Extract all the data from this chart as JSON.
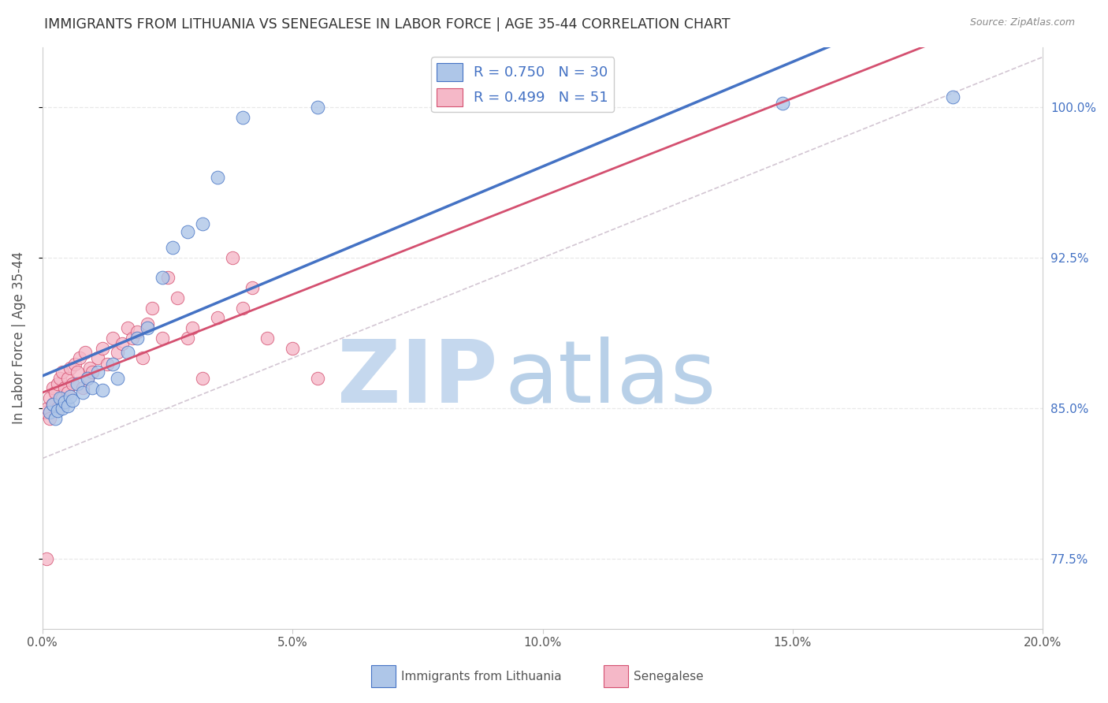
{
  "title": "IMMIGRANTS FROM LITHUANIA VS SENEGALESE IN LABOR FORCE | AGE 35-44 CORRELATION CHART",
  "source": "Source: ZipAtlas.com",
  "xlabel_vals": [
    0.0,
    5.0,
    10.0,
    15.0,
    20.0
  ],
  "ylabel_vals": [
    77.5,
    85.0,
    92.5,
    100.0
  ],
  "xmin": 0.0,
  "xmax": 20.0,
  "ymin": 74.0,
  "ymax": 103.0,
  "R1": 0.75,
  "N1": 30,
  "R2": 0.499,
  "N2": 51,
  "color_blue": "#aec6e8",
  "color_pink": "#f5b8c8",
  "line_blue": "#4472c4",
  "line_pink": "#d45070",
  "line_dashed_color": "#c8b8c8",
  "ylabel": "In Labor Force | Age 35-44",
  "watermark_ZIP": "ZIP",
  "watermark_atlas": "atlas",
  "watermark_color": "#dce8f5",
  "tick_color_right": "#4472c4",
  "grid_color": "#e8e8e8",
  "legend_R_color": "#4472c4",
  "legend_N_color": "#22aa22",
  "blue_x": [
    0.15,
    0.2,
    0.25,
    0.3,
    0.35,
    0.4,
    0.45,
    0.5,
    0.55,
    0.6,
    0.7,
    0.8,
    0.9,
    1.0,
    1.1,
    1.2,
    1.4,
    1.5,
    1.7,
    1.9,
    2.1,
    2.4,
    2.6,
    2.9,
    3.2,
    3.5,
    4.0,
    5.5,
    14.8,
    18.2
  ],
  "blue_y": [
    84.8,
    85.2,
    84.5,
    84.9,
    85.5,
    85.0,
    85.3,
    85.1,
    85.6,
    85.4,
    86.2,
    85.8,
    86.5,
    86.0,
    86.8,
    85.9,
    87.2,
    86.5,
    87.8,
    88.5,
    89.0,
    91.5,
    93.0,
    93.8,
    94.2,
    96.5,
    99.5,
    100.0,
    100.2,
    100.5
  ],
  "pink_x": [
    0.05,
    0.1,
    0.15,
    0.15,
    0.2,
    0.2,
    0.25,
    0.3,
    0.3,
    0.35,
    0.4,
    0.4,
    0.45,
    0.5,
    0.5,
    0.55,
    0.6,
    0.65,
    0.7,
    0.75,
    0.8,
    0.85,
    0.9,
    0.95,
    1.0,
    1.1,
    1.2,
    1.3,
    1.4,
    1.5,
    1.6,
    1.7,
    1.8,
    1.9,
    2.0,
    2.1,
    2.2,
    2.4,
    2.5,
    2.7,
    2.9,
    3.0,
    3.2,
    3.5,
    3.8,
    4.0,
    4.2,
    4.5,
    5.0,
    5.5,
    0.08
  ],
  "pink_y": [
    84.8,
    85.0,
    84.5,
    85.5,
    85.2,
    86.0,
    85.8,
    85.0,
    86.2,
    86.5,
    85.5,
    86.8,
    86.0,
    85.8,
    86.5,
    87.0,
    86.2,
    87.2,
    86.8,
    87.5,
    86.0,
    87.8,
    86.5,
    87.0,
    86.8,
    87.5,
    88.0,
    87.2,
    88.5,
    87.8,
    88.2,
    89.0,
    88.5,
    88.8,
    87.5,
    89.2,
    90.0,
    88.5,
    91.5,
    90.5,
    88.5,
    89.0,
    86.5,
    89.5,
    92.5,
    90.0,
    91.0,
    88.5,
    88.0,
    86.5,
    77.5
  ]
}
